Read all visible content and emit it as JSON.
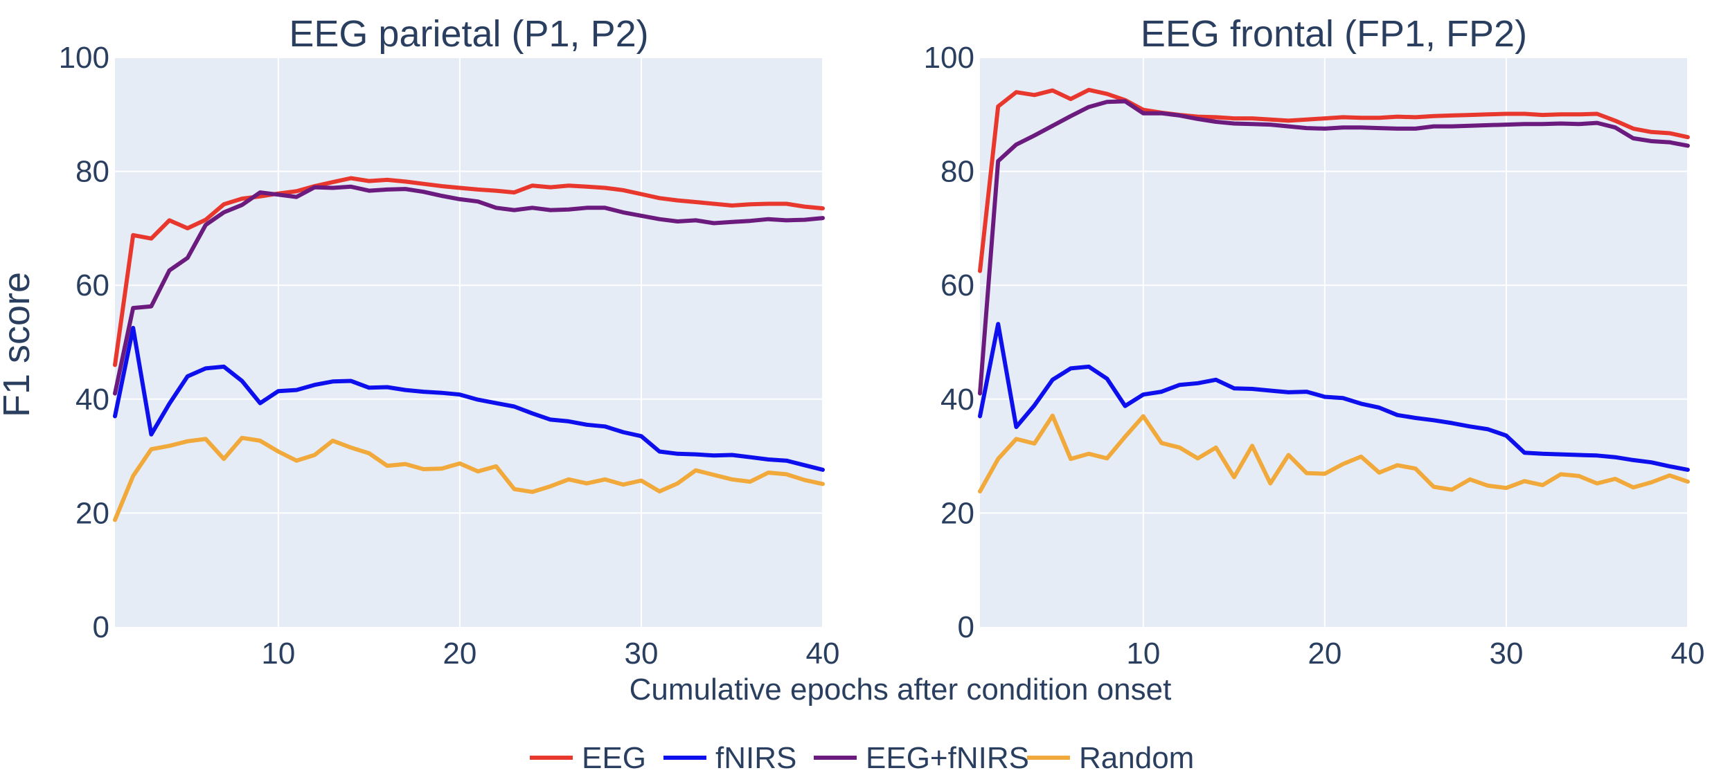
{
  "chart_data": {
    "type": "line",
    "shared": {
      "xlabel": "Cumulative epochs after condition onset",
      "ylabel": "F1 score",
      "xlim": [
        1,
        40
      ],
      "ylim": [
        0,
        100
      ],
      "xticks": [
        10,
        20,
        30,
        40
      ],
      "yticks": [
        0,
        20,
        40,
        60,
        80,
        100
      ],
      "grid": true,
      "legend_position": "bottom-center"
    },
    "legend": [
      {
        "name": "EEG",
        "color": "#e8382e"
      },
      {
        "name": "fNIRS",
        "color": "#0d10ec"
      },
      {
        "name": "EEG+fNIRS",
        "color": "#6b1a7e"
      },
      {
        "name": "Random",
        "color": "#f0a93a"
      }
    ],
    "panels": [
      {
        "title": "EEG parietal (P1, P2)",
        "x": [
          1,
          2,
          3,
          4,
          5,
          6,
          7,
          8,
          9,
          10,
          11,
          12,
          13,
          14,
          15,
          16,
          17,
          18,
          19,
          20,
          21,
          22,
          23,
          24,
          25,
          26,
          27,
          28,
          29,
          30,
          31,
          32,
          33,
          34,
          35,
          36,
          37,
          38,
          39,
          40
        ],
        "series": [
          {
            "name": "EEG",
            "color": "#e8382e",
            "values": [
              46,
              68.8,
              68.2,
              71.4,
              70,
              71.5,
              74.2,
              75.2,
              75.6,
              76.1,
              76.5,
              77.4,
              78.1,
              78.8,
              78.3,
              78.5,
              78.2,
              77.8,
              77.4,
              77.1,
              76.8,
              76.6,
              76.3,
              77.5,
              77.2,
              77.5,
              77.3,
              77.1,
              76.7,
              76,
              75.3,
              74.9,
              74.6,
              74.3,
              74,
              74.2,
              74.3,
              74.3,
              73.8,
              73.5
            ]
          },
          {
            "name": "fNIRS",
            "color": "#0d10ec",
            "values": [
              37,
              52.5,
              33.8,
              39.2,
              44,
              45.4,
              45.7,
              43.2,
              39.3,
              41.4,
              41.6,
              42.5,
              43.1,
              43.2,
              42,
              42.1,
              41.6,
              41.3,
              41.1,
              40.8,
              39.9,
              39.3,
              38.7,
              37.5,
              36.4,
              36.1,
              35.5,
              35.2,
              34.2,
              33.5,
              30.8,
              30.4,
              30.3,
              30.1,
              30.2,
              29.8,
              29.4,
              29.2,
              28.4,
              27.6
            ]
          },
          {
            "name": "EEG+fNIRS",
            "color": "#6b1a7e",
            "values": [
              41,
              56,
              56.3,
              62.6,
              64.8,
              70.6,
              72.8,
              74.1,
              76.3,
              75.9,
              75.5,
              77.2,
              77.1,
              77.3,
              76.6,
              76.8,
              76.9,
              76.4,
              75.7,
              75.1,
              74.7,
              73.6,
              73.2,
              73.6,
              73.2,
              73.3,
              73.6,
              73.6,
              72.8,
              72.2,
              71.6,
              71.2,
              71.4,
              70.9,
              71.1,
              71.3,
              71.6,
              71.4,
              71.5,
              71.8
            ]
          },
          {
            "name": "Random",
            "color": "#f0a93a",
            "values": [
              18.8,
              26.5,
              31.2,
              31.8,
              32.6,
              33,
              29.5,
              33.2,
              32.7,
              30.8,
              29.2,
              30.2,
              32.7,
              31.5,
              30.5,
              28.3,
              28.6,
              27.7,
              27.8,
              28.7,
              27.3,
              28.2,
              24.2,
              23.7,
              24.7,
              25.9,
              25.2,
              25.9,
              25,
              25.7,
              23.8,
              25.2,
              27.5,
              26.7,
              25.9,
              25.5,
              27.1,
              26.8,
              25.8,
              25.1
            ]
          }
        ]
      },
      {
        "title": "EEG frontal (FP1, FP2)",
        "x": [
          1,
          2,
          3,
          4,
          5,
          6,
          7,
          8,
          9,
          10,
          11,
          12,
          13,
          14,
          15,
          16,
          17,
          18,
          19,
          20,
          21,
          22,
          23,
          24,
          25,
          26,
          27,
          28,
          29,
          30,
          31,
          32,
          33,
          34,
          35,
          36,
          37,
          38,
          39,
          40
        ],
        "series": [
          {
            "name": "EEG",
            "color": "#e8382e",
            "values": [
              62.5,
              91.4,
              93.9,
              93.4,
              94.2,
              92.7,
              94.3,
              93.6,
              92.5,
              90.8,
              90.3,
              89.9,
              89.6,
              89.5,
              89.3,
              89.3,
              89.1,
              88.9,
              89.1,
              89.3,
              89.5,
              89.4,
              89.4,
              89.6,
              89.5,
              89.7,
              89.8,
              89.9,
              90,
              90.1,
              90.1,
              89.9,
              90,
              90,
              90.1,
              88.9,
              87.5,
              86.9,
              86.7,
              86
            ]
          },
          {
            "name": "fNIRS",
            "color": "#0d10ec",
            "values": [
              37,
              53.2,
              35.1,
              38.9,
              43.4,
              45.4,
              45.7,
              43.6,
              38.8,
              40.8,
              41.3,
              42.5,
              42.8,
              43.4,
              41.9,
              41.8,
              41.5,
              41.2,
              41.3,
              40.4,
              40.2,
              39.2,
              38.5,
              37.2,
              36.7,
              36.3,
              35.8,
              35.2,
              34.7,
              33.6,
              30.6,
              30.4,
              30.3,
              30.2,
              30.1,
              29.8,
              29.3,
              28.9,
              28.2,
              27.6
            ]
          },
          {
            "name": "EEG+fNIRS",
            "color": "#6b1a7e",
            "values": [
              41,
              81.8,
              84.7,
              86.3,
              88,
              89.7,
              91.3,
              92.2,
              92.3,
              90.2,
              90.2,
              89.8,
              89.2,
              88.7,
              88.4,
              88.3,
              88.2,
              87.9,
              87.6,
              87.5,
              87.7,
              87.7,
              87.6,
              87.5,
              87.5,
              87.9,
              87.9,
              88,
              88.1,
              88.2,
              88.3,
              88.3,
              88.4,
              88.3,
              88.5,
              87.7,
              85.8,
              85.3,
              85.1,
              84.5
            ]
          },
          {
            "name": "Random",
            "color": "#f0a93a",
            "values": [
              23.8,
              29.5,
              33,
              32.2,
              37.1,
              29.5,
              30.4,
              29.6,
              33.4,
              37,
              32.3,
              31.5,
              29.6,
              31.5,
              26.3,
              31.8,
              25.2,
              30.2,
              27,
              26.9,
              28.6,
              29.9,
              27.1,
              28.4,
              27.8,
              24.6,
              24.1,
              25.9,
              24.8,
              24.4,
              25.6,
              24.9,
              26.8,
              26.5,
              25.2,
              26,
              24.5,
              25.4,
              26.6,
              25.5
            ]
          }
        ]
      }
    ]
  }
}
